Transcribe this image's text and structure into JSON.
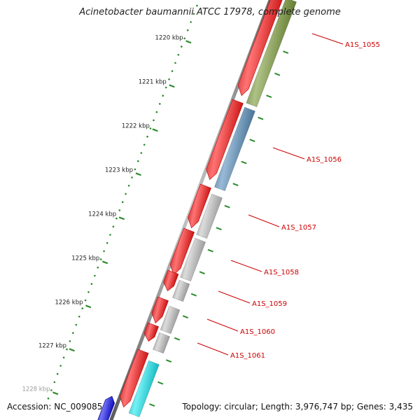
{
  "title": "Acinetobacter baumannii ATCC 17978, complete genome",
  "footer": {
    "accession": "Accession: NC_009085",
    "topology": "Topology: circular; Length: 3,976,747 bp; Genes: 3,435"
  },
  "ruler": {
    "color": "#2e8b2e",
    "labels": [
      "1220 kbp",
      "1221 kbp",
      "1222 kbp",
      "1223 kbp",
      "1224 kbp",
      "1225 kbp",
      "1226 kbp",
      "1227 kbp",
      "1228 kbp"
    ]
  },
  "gene_labels": [
    "A1S_1055",
    "A1S_1056",
    "A1S_1057",
    "A1S_1058",
    "A1S_1059",
    "A1S_1060",
    "A1S_1061"
  ],
  "colors": {
    "cds_strand": "#ff0000",
    "label_text": "#cc0000",
    "backbone": "#8c8c8c",
    "cog_olive": "#6b8e23",
    "cog_steelblue": "#4682b4",
    "cog_gray": "#c0c0c0",
    "cog_cyan": "#00e5ee",
    "cog_blue": "#0000ee"
  }
}
